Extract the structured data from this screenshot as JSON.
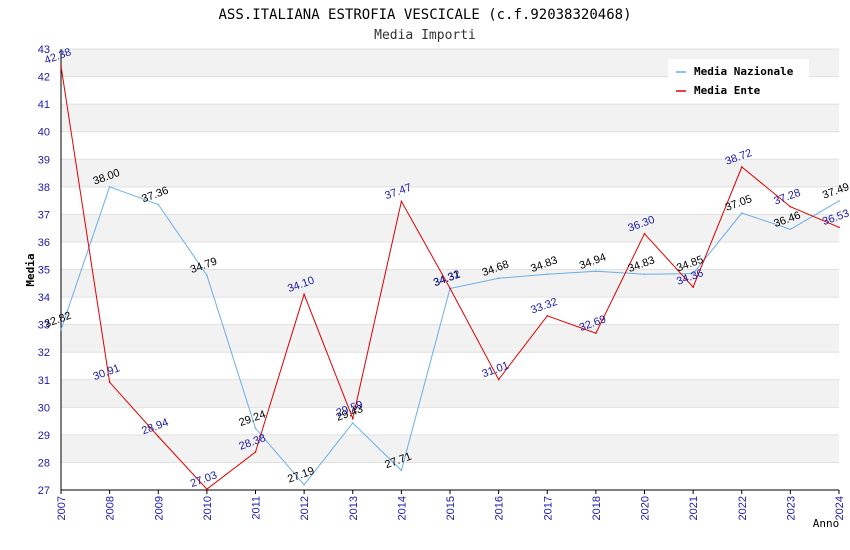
{
  "chart_data": {
    "type": "line",
    "title": "ASS.ITALIANA ESTROFIA VESCICALE (c.f.92038320468)",
    "subtitle": "Media Importi",
    "xlabel": "Anno",
    "ylabel": "Media",
    "ylim": [
      27,
      43
    ],
    "categories": [
      "2007",
      "2008",
      "2009",
      "2010",
      "2011",
      "2012",
      "2013",
      "2014",
      "2015",
      "2016",
      "2017",
      "2018",
      "2020",
      "2021",
      "2022",
      "2023",
      "2024"
    ],
    "series": [
      {
        "name": "Media Nazionale",
        "color": "#6aaee8",
        "label_color": "#000000",
        "values": [
          32.82,
          38.0,
          37.36,
          34.79,
          29.24,
          27.19,
          29.43,
          27.71,
          34.31,
          34.68,
          34.83,
          34.94,
          34.83,
          34.85,
          37.05,
          36.46,
          37.49
        ],
        "labels": [
          "32.82",
          "38.00",
          "37.36",
          "34.79",
          "29.24",
          "27.19",
          "29.43",
          "27.71",
          "34.31",
          "34.68",
          "34.83",
          "34.94",
          "34.83",
          "34.85",
          "37.05",
          "36.46",
          "37.49"
        ]
      },
      {
        "name": "Media Ente",
        "color": "#dd0000",
        "label_color": "#1a1aa6",
        "values": [
          42.38,
          30.91,
          28.94,
          27.03,
          28.38,
          34.1,
          29.59,
          37.47,
          34.32,
          31.01,
          33.32,
          32.69,
          36.3,
          34.36,
          38.72,
          37.28,
          36.53
        ],
        "labels": [
          "42.38",
          "30.91",
          "28.94",
          "27.03",
          "28.38",
          "34.10",
          "29.59",
          "37.47",
          "34.32",
          "31.01",
          "33.32",
          "32.69",
          "36.30",
          "34.36",
          "38.72",
          "37.28",
          "36.53"
        ]
      }
    ],
    "legend_position": "top-right",
    "grid": true
  }
}
